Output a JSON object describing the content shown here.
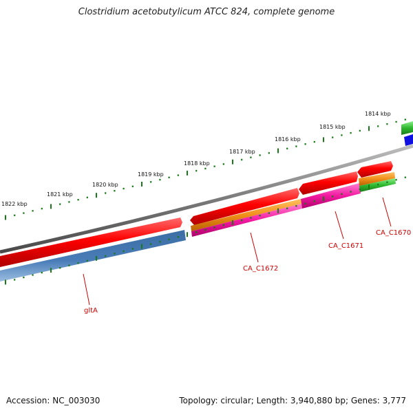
{
  "title": "Clostridium acetobutylicum ATCC 824, complete genome",
  "scale_labels": [
    "1814 kbp",
    "1815 kbp",
    "1816 kbp",
    "1817 kbp",
    "1818 kbp",
    "1819 kbp",
    "1820 kbp",
    "1821 kbp",
    "1822 kbp"
  ],
  "gene_labels": [
    "gltA",
    "CA_C1672",
    "CA_C1671",
    "CA_C1670"
  ],
  "footer": {
    "accession": "Accession: NC_003030",
    "stats": "Topology: circular; Length: 3,940,880 bp; Genes: 3,777"
  },
  "colors": {
    "backbone": "#7a7a7a",
    "cds": "#e00000",
    "cog_orange": "#f0901a",
    "cog_pink": "#f21aa0",
    "cog_steelblue": "#4a7db8",
    "cog_green": "#2eb82e",
    "cog_blue": "#1010e0",
    "tick": "#1a7a1a",
    "label": "#cc0000"
  }
}
